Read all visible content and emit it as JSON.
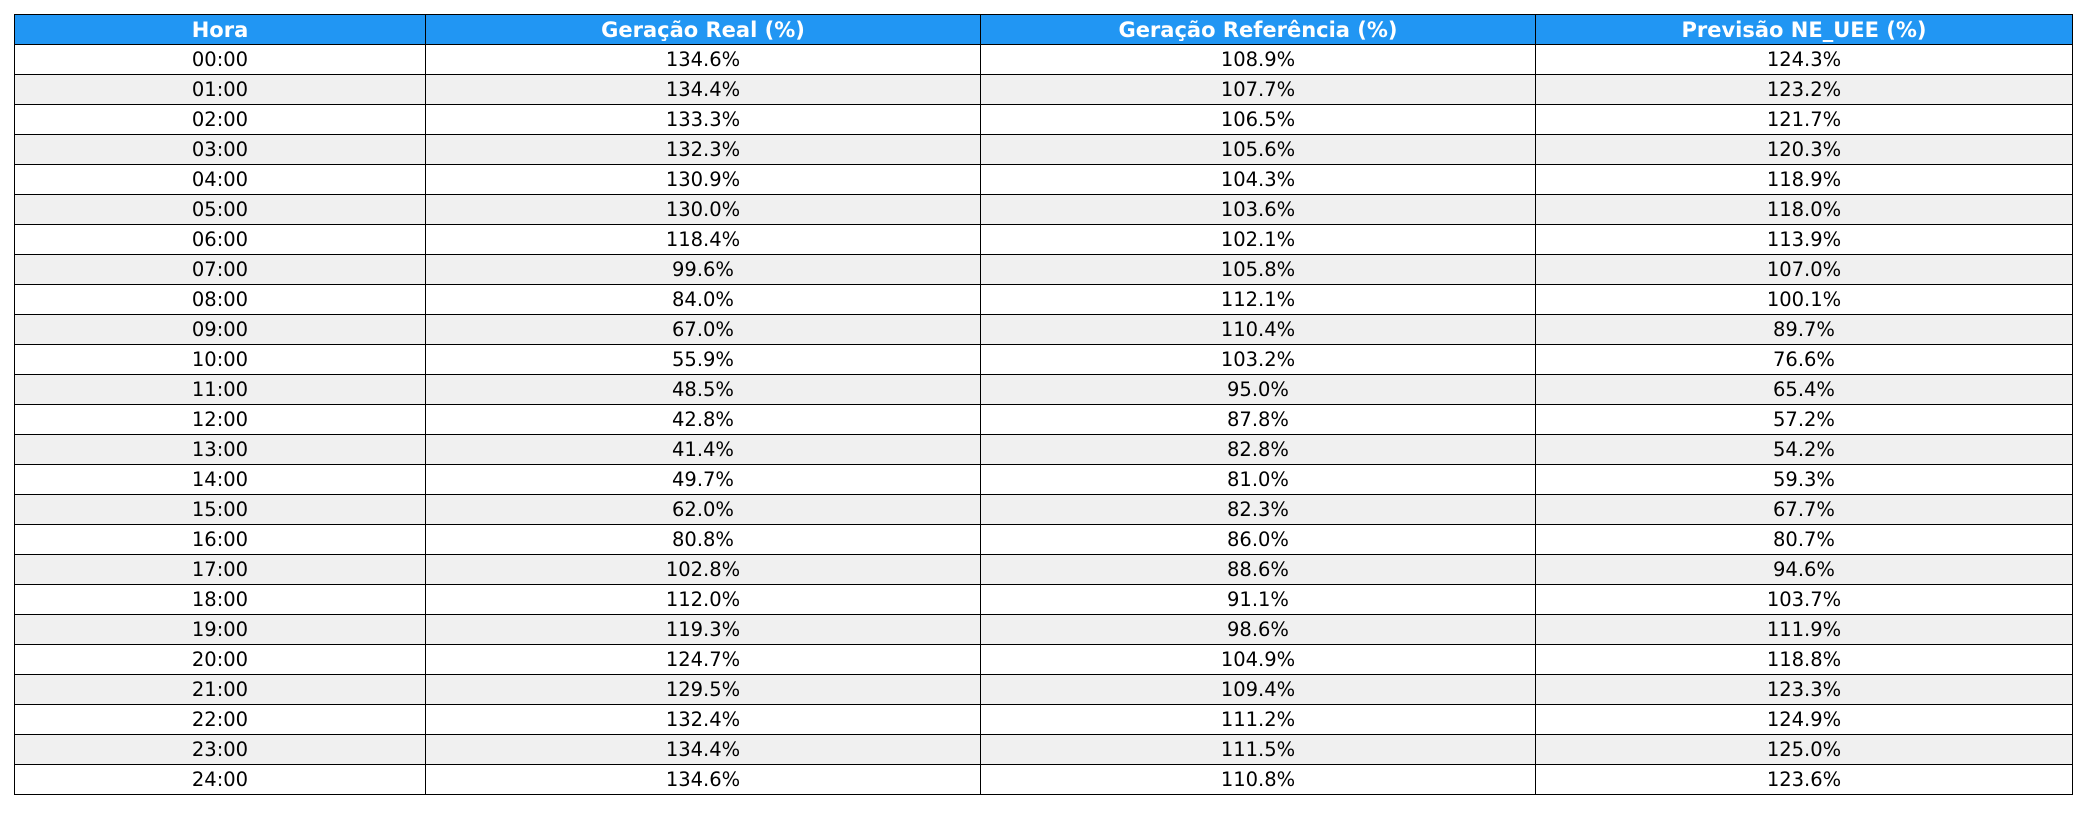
{
  "chart_data": {
    "type": "table",
    "columns": [
      "Hora",
      "Geração Real (%)",
      "Geração Referência (%)",
      "Previsão NE_UEE (%)"
    ],
    "rows": [
      [
        "00:00",
        "134.6%",
        "108.9%",
        "124.3%"
      ],
      [
        "01:00",
        "134.4%",
        "107.7%",
        "123.2%"
      ],
      [
        "02:00",
        "133.3%",
        "106.5%",
        "121.7%"
      ],
      [
        "03:00",
        "132.3%",
        "105.6%",
        "120.3%"
      ],
      [
        "04:00",
        "130.9%",
        "104.3%",
        "118.9%"
      ],
      [
        "05:00",
        "130.0%",
        "103.6%",
        "118.0%"
      ],
      [
        "06:00",
        "118.4%",
        "102.1%",
        "113.9%"
      ],
      [
        "07:00",
        "99.6%",
        "105.8%",
        "107.0%"
      ],
      [
        "08:00",
        "84.0%",
        "112.1%",
        "100.1%"
      ],
      [
        "09:00",
        "67.0%",
        "110.4%",
        "89.7%"
      ],
      [
        "10:00",
        "55.9%",
        "103.2%",
        "76.6%"
      ],
      [
        "11:00",
        "48.5%",
        "95.0%",
        "65.4%"
      ],
      [
        "12:00",
        "42.8%",
        "87.8%",
        "57.2%"
      ],
      [
        "13:00",
        "41.4%",
        "82.8%",
        "54.2%"
      ],
      [
        "14:00",
        "49.7%",
        "81.0%",
        "59.3%"
      ],
      [
        "15:00",
        "62.0%",
        "82.3%",
        "67.7%"
      ],
      [
        "16:00",
        "80.8%",
        "86.0%",
        "80.7%"
      ],
      [
        "17:00",
        "102.8%",
        "88.6%",
        "94.6%"
      ],
      [
        "18:00",
        "112.0%",
        "91.1%",
        "103.7%"
      ],
      [
        "19:00",
        "119.3%",
        "98.6%",
        "111.9%"
      ],
      [
        "20:00",
        "124.7%",
        "104.9%",
        "118.8%"
      ],
      [
        "21:00",
        "129.5%",
        "109.4%",
        "123.3%"
      ],
      [
        "22:00",
        "132.4%",
        "111.2%",
        "124.9%"
      ],
      [
        "23:00",
        "134.4%",
        "111.5%",
        "125.0%"
      ],
      [
        "24:00",
        "134.6%",
        "110.8%",
        "123.6%"
      ]
    ],
    "colors": {
      "header_bg": "#2196f3",
      "header_text": "#ffffff",
      "row_alt_bg": "#f0f0f0",
      "row_bg": "#ffffff",
      "border": "#000000"
    }
  }
}
